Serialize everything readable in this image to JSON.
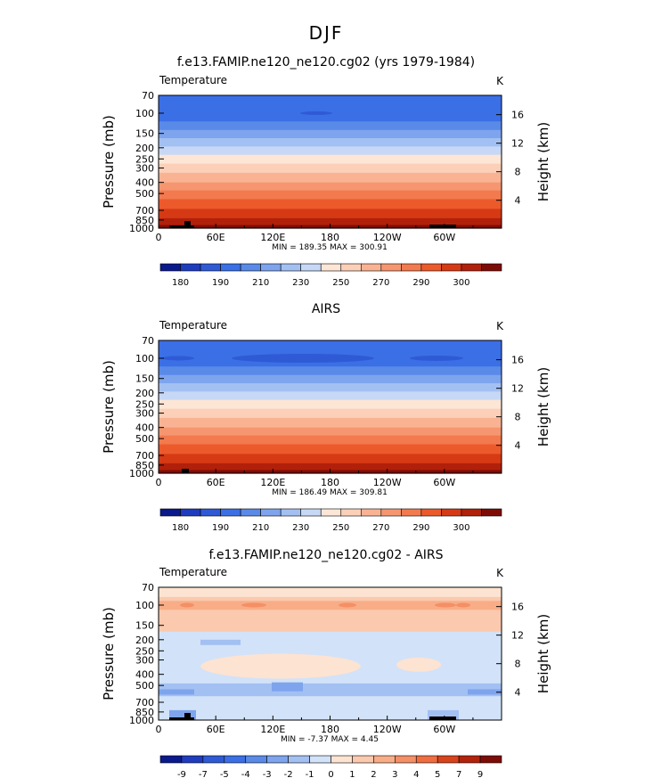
{
  "figure": {
    "title": "DJF"
  },
  "chart_data": [
    {
      "type": "heatmap",
      "title": "f.e13.FAMIP.ne120_ne120.cg02 (yrs 1979-1984)",
      "variable_label": "Temperature",
      "units": "K",
      "ylabel": "Pressure (mb)",
      "ylabel_right": "Height (km)",
      "x_ticks": [
        "0",
        "60E",
        "120E",
        "180",
        "120W",
        "60W"
      ],
      "y_ticks": [
        "70",
        "100",
        "150",
        "200",
        "250",
        "300",
        "400",
        "500",
        "700",
        "850",
        "1000"
      ],
      "y_ticks_right": [
        "16",
        "12",
        "8",
        "4"
      ],
      "stats": "MIN = 189.35   MAX = 300.91",
      "colorbar_labels": [
        "180",
        "190",
        "210",
        "230",
        "250",
        "270",
        "290",
        "300"
      ],
      "min": 189.35,
      "max": 300.91
    },
    {
      "type": "heatmap",
      "title": "AIRS",
      "variable_label": "Temperature",
      "units": "K",
      "ylabel": "Pressure (mb)",
      "ylabel_right": "Height (km)",
      "x_ticks": [
        "0",
        "60E",
        "120E",
        "180",
        "120W",
        "60W"
      ],
      "y_ticks": [
        "70",
        "100",
        "150",
        "200",
        "250",
        "300",
        "400",
        "500",
        "700",
        "850",
        "1000"
      ],
      "y_ticks_right": [
        "16",
        "12",
        "8",
        "4"
      ],
      "stats": "MIN = 186.49   MAX = 309.81",
      "colorbar_labels": [
        "180",
        "190",
        "210",
        "230",
        "250",
        "270",
        "290",
        "300"
      ],
      "min": 186.49,
      "max": 309.81
    },
    {
      "type": "heatmap",
      "title": "f.e13.FAMIP.ne120_ne120.cg02 - AIRS",
      "variable_label": "Temperature",
      "units": "K",
      "ylabel": "Pressure (mb)",
      "ylabel_right": "Height (km)",
      "x_ticks": [
        "0",
        "60E",
        "120E",
        "180",
        "120W",
        "60W"
      ],
      "y_ticks": [
        "70",
        "100",
        "150",
        "200",
        "250",
        "300",
        "400",
        "500",
        "700",
        "850",
        "1000"
      ],
      "y_ticks_right": [
        "16",
        "12",
        "8",
        "4"
      ],
      "stats": "MIN =  -7.37   MAX =    4.45",
      "colorbar_labels": [
        "-9",
        "-7",
        "-5",
        "-4",
        "-3",
        "-2",
        "-1",
        "0",
        "1",
        "2",
        "3",
        "4",
        "5",
        "7",
        "9"
      ],
      "min": -7.37,
      "max": 4.45
    }
  ],
  "palette_abs": [
    "#0a1a8c",
    "#1f3cbf",
    "#2f5ad6",
    "#3b6fe6",
    "#5a8ae8",
    "#7ea4ee",
    "#a3c0f2",
    "#c6d8f5",
    "#fde6d6",
    "#fcd0b8",
    "#f9b393",
    "#f59670",
    "#f27a4e",
    "#ec5a2c",
    "#d63a14",
    "#b1200a",
    "#7e0c06"
  ],
  "palette_diff": [
    "#0a1a8c",
    "#1f3cbf",
    "#2f5ad6",
    "#3b6fe6",
    "#5a8ae8",
    "#7ea4ee",
    "#a3c0f2",
    "#d2e2f8",
    "#fde3d2",
    "#fbc9ad",
    "#f8ad87",
    "#f48f66",
    "#ef6d40",
    "#d8431b",
    "#b3230b",
    "#7e0c06"
  ]
}
